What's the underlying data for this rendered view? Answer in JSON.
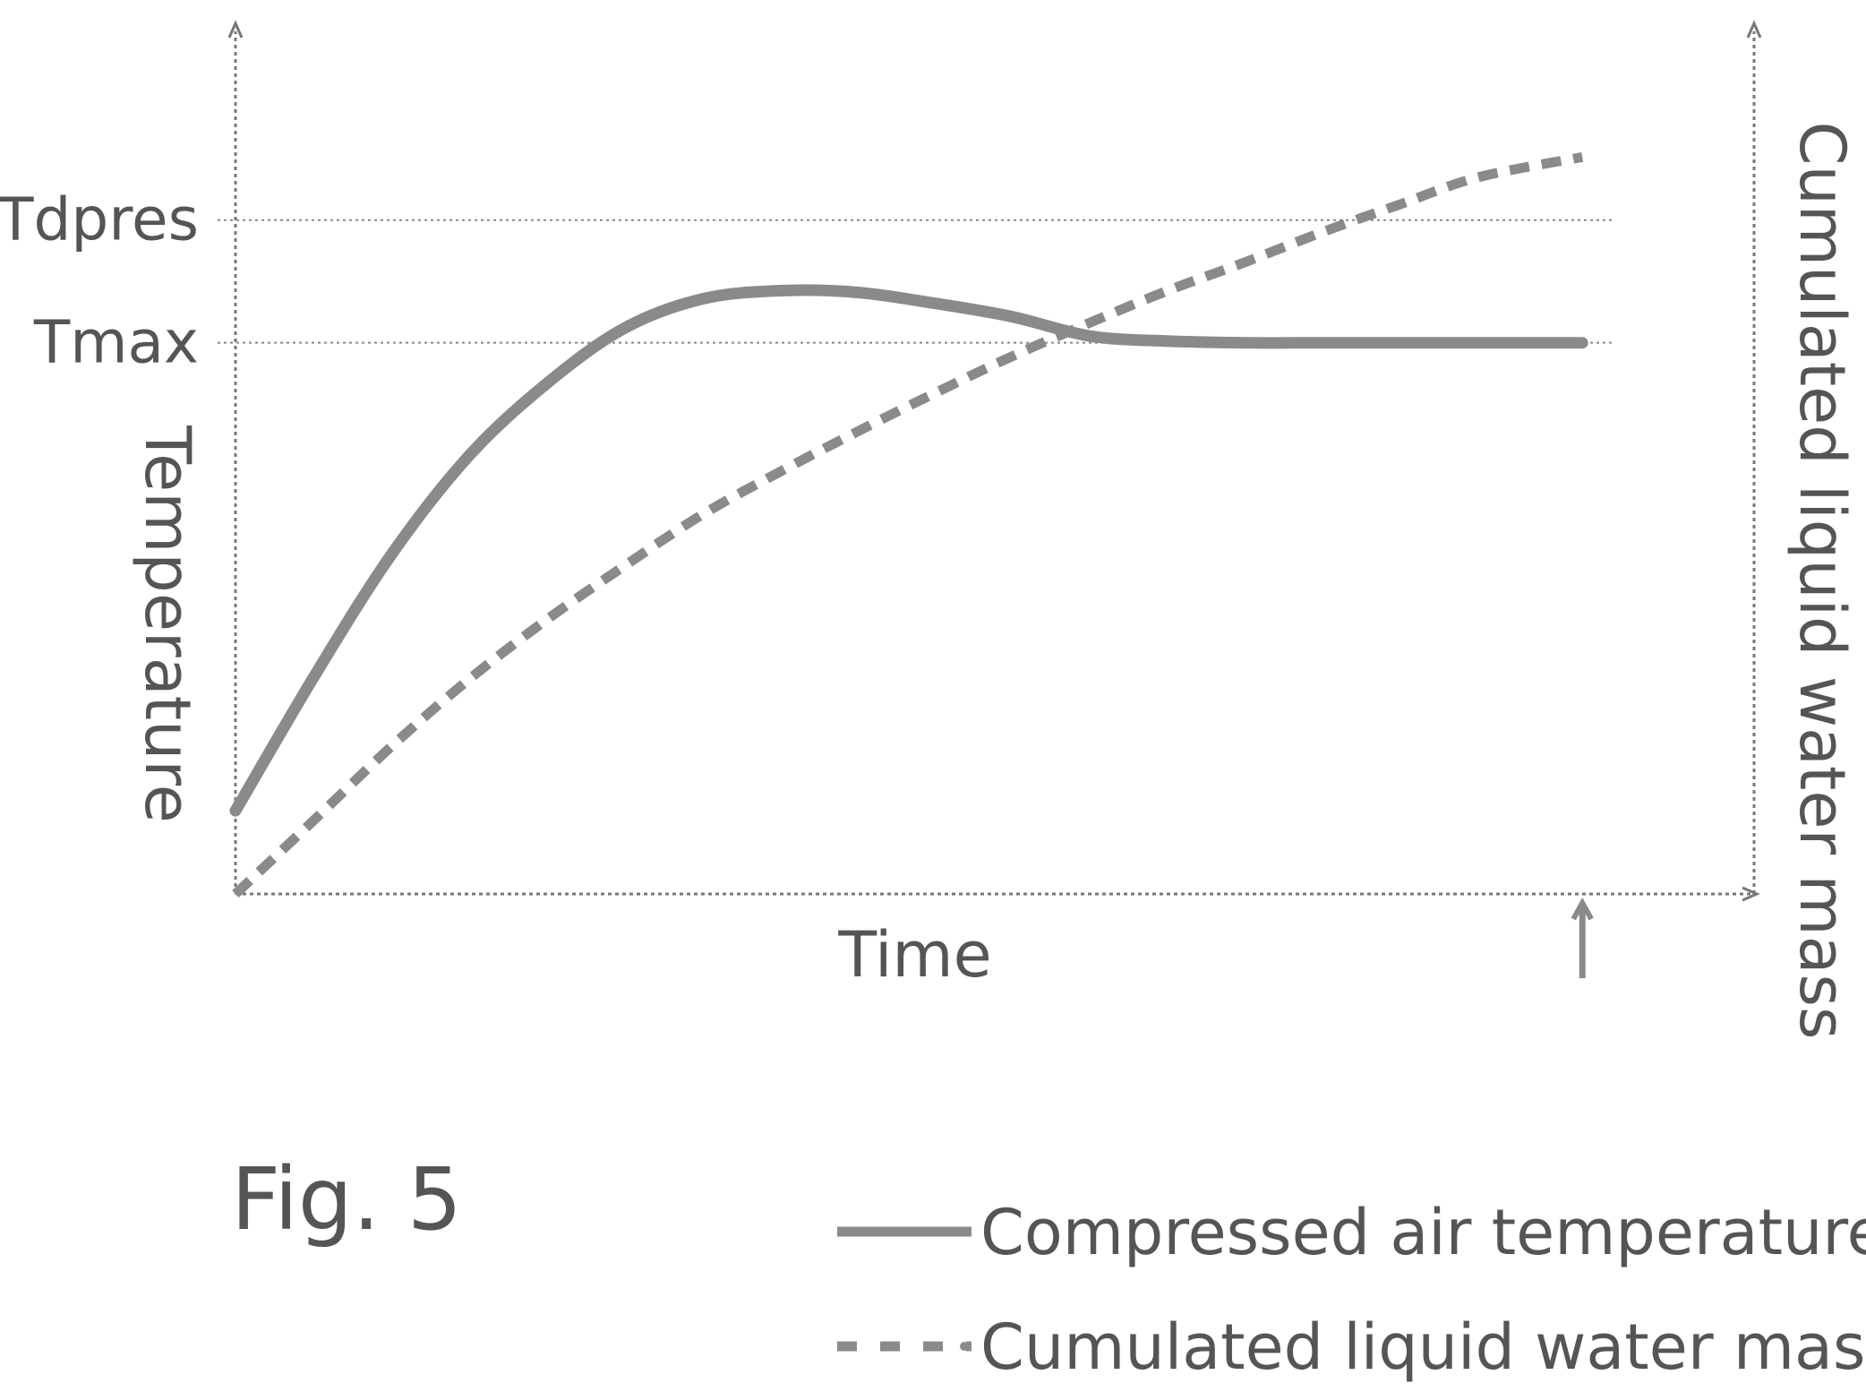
{
  "chart_data": {
    "type": "line",
    "title": "",
    "xlabel": "Time",
    "ylabel": "Temperature",
    "y2label": "Cumulated liquid water mass",
    "xlim": [
      0,
      1
    ],
    "ylim": [
      0,
      1
    ],
    "y2lim": [
      0,
      1
    ],
    "grid": false,
    "legend_placement": "bottom-right",
    "reference_lines": [
      {
        "label": "Tdpres",
        "y": 0.802
      },
      {
        "label": "Tmax",
        "y": 0.656
      }
    ],
    "marker_arrow": {
      "x": 0.867
    },
    "series": [
      {
        "name": "Compressed air temperature",
        "style": "solid",
        "points": [
          [
            0.0,
            0.099
          ],
          [
            0.05,
            0.257
          ],
          [
            0.1,
            0.403
          ],
          [
            0.15,
            0.521
          ],
          [
            0.2,
            0.607
          ],
          [
            0.25,
            0.673
          ],
          [
            0.3,
            0.708
          ],
          [
            0.35,
            0.718
          ],
          [
            0.4,
            0.716
          ],
          [
            0.45,
            0.703
          ],
          [
            0.5,
            0.687
          ],
          [
            0.55,
            0.664
          ],
          [
            0.6,
            0.658
          ],
          [
            0.65,
            0.656
          ],
          [
            0.7,
            0.656
          ],
          [
            0.75,
            0.656
          ],
          [
            0.8,
            0.656
          ],
          [
            0.867,
            0.656
          ]
        ]
      },
      {
        "name": "Cumulated liquid water mass",
        "style": "dashed",
        "points": [
          [
            0.0,
            0.0
          ],
          [
            0.05,
            0.087
          ],
          [
            0.1,
            0.175
          ],
          [
            0.15,
            0.255
          ],
          [
            0.2,
            0.326
          ],
          [
            0.25,
            0.39
          ],
          [
            0.3,
            0.451
          ],
          [
            0.35,
            0.502
          ],
          [
            0.4,
            0.55
          ],
          [
            0.45,
            0.596
          ],
          [
            0.5,
            0.64
          ],
          [
            0.55,
            0.68
          ],
          [
            0.6,
            0.718
          ],
          [
            0.65,
            0.752
          ],
          [
            0.7,
            0.788
          ],
          [
            0.75,
            0.821
          ],
          [
            0.8,
            0.853
          ],
          [
            0.867,
            0.877
          ]
        ]
      }
    ]
  },
  "figure_label": "Fig. 5"
}
